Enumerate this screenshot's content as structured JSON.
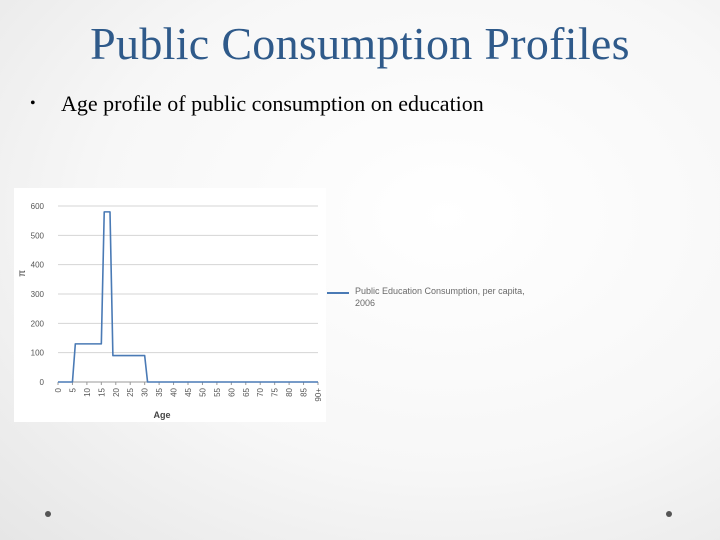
{
  "slide": {
    "title": "Public Consumption Profiles",
    "bullet_symbol": "•",
    "bullet_text": "Age profile of public consumption on education"
  },
  "legend": {
    "label": "Public Education Consumption, per capita, 2006"
  },
  "chart_data": {
    "type": "line",
    "title": "",
    "xlabel": "Age",
    "ylabel": "π",
    "ylim": [
      0,
      600
    ],
    "yticks": [
      0,
      100,
      200,
      300,
      400,
      500,
      600
    ],
    "xtick_labels": [
      "0",
      "5",
      "10",
      "15",
      "20",
      "25",
      "30",
      "35",
      "40",
      "45",
      "50",
      "55",
      "60",
      "65",
      "70",
      "75",
      "80",
      "85",
      "90+"
    ],
    "grid": "horizontal",
    "legend_position": "right",
    "line_color": "#4a7ab5",
    "series": [
      {
        "name": "Public Education Consumption, per capita, 2006",
        "x": [
          0,
          1,
          2,
          3,
          4,
          5,
          6,
          7,
          8,
          9,
          10,
          11,
          12,
          13,
          14,
          15,
          16,
          17,
          18,
          19,
          20,
          21,
          22,
          23,
          24,
          25,
          26,
          27,
          28,
          29,
          30,
          31,
          32,
          33,
          34,
          35,
          36,
          37,
          38,
          39,
          40,
          41,
          42,
          43,
          44,
          45,
          46,
          47,
          48,
          49,
          50,
          51,
          52,
          53,
          54,
          55,
          56,
          57,
          58,
          59,
          60,
          61,
          62,
          63,
          64,
          65,
          66,
          67,
          68,
          69,
          70,
          71,
          72,
          73,
          74,
          75,
          76,
          77,
          78,
          79,
          80,
          81,
          82,
          83,
          84,
          85,
          86,
          87,
          88,
          89,
          90
        ],
        "values": [
          0,
          0,
          0,
          0,
          0,
          0,
          130,
          130,
          130,
          130,
          130,
          130,
          130,
          130,
          130,
          130,
          580,
          580,
          580,
          90,
          90,
          90,
          90,
          90,
          90,
          90,
          90,
          90,
          90,
          90,
          90,
          0,
          0,
          0,
          0,
          0,
          0,
          0,
          0,
          0,
          0,
          0,
          0,
          0,
          0,
          0,
          0,
          0,
          0,
          0,
          0,
          0,
          0,
          0,
          0,
          0,
          0,
          0,
          0,
          0,
          0,
          0,
          0,
          0,
          0,
          0,
          0,
          0,
          0,
          0,
          0,
          0,
          0,
          0,
          0,
          0,
          0,
          0,
          0,
          0,
          0,
          0,
          0,
          0,
          0,
          0,
          0,
          0,
          0,
          0,
          0
        ]
      }
    ]
  },
  "decor": {
    "dot_color": "#555555"
  }
}
